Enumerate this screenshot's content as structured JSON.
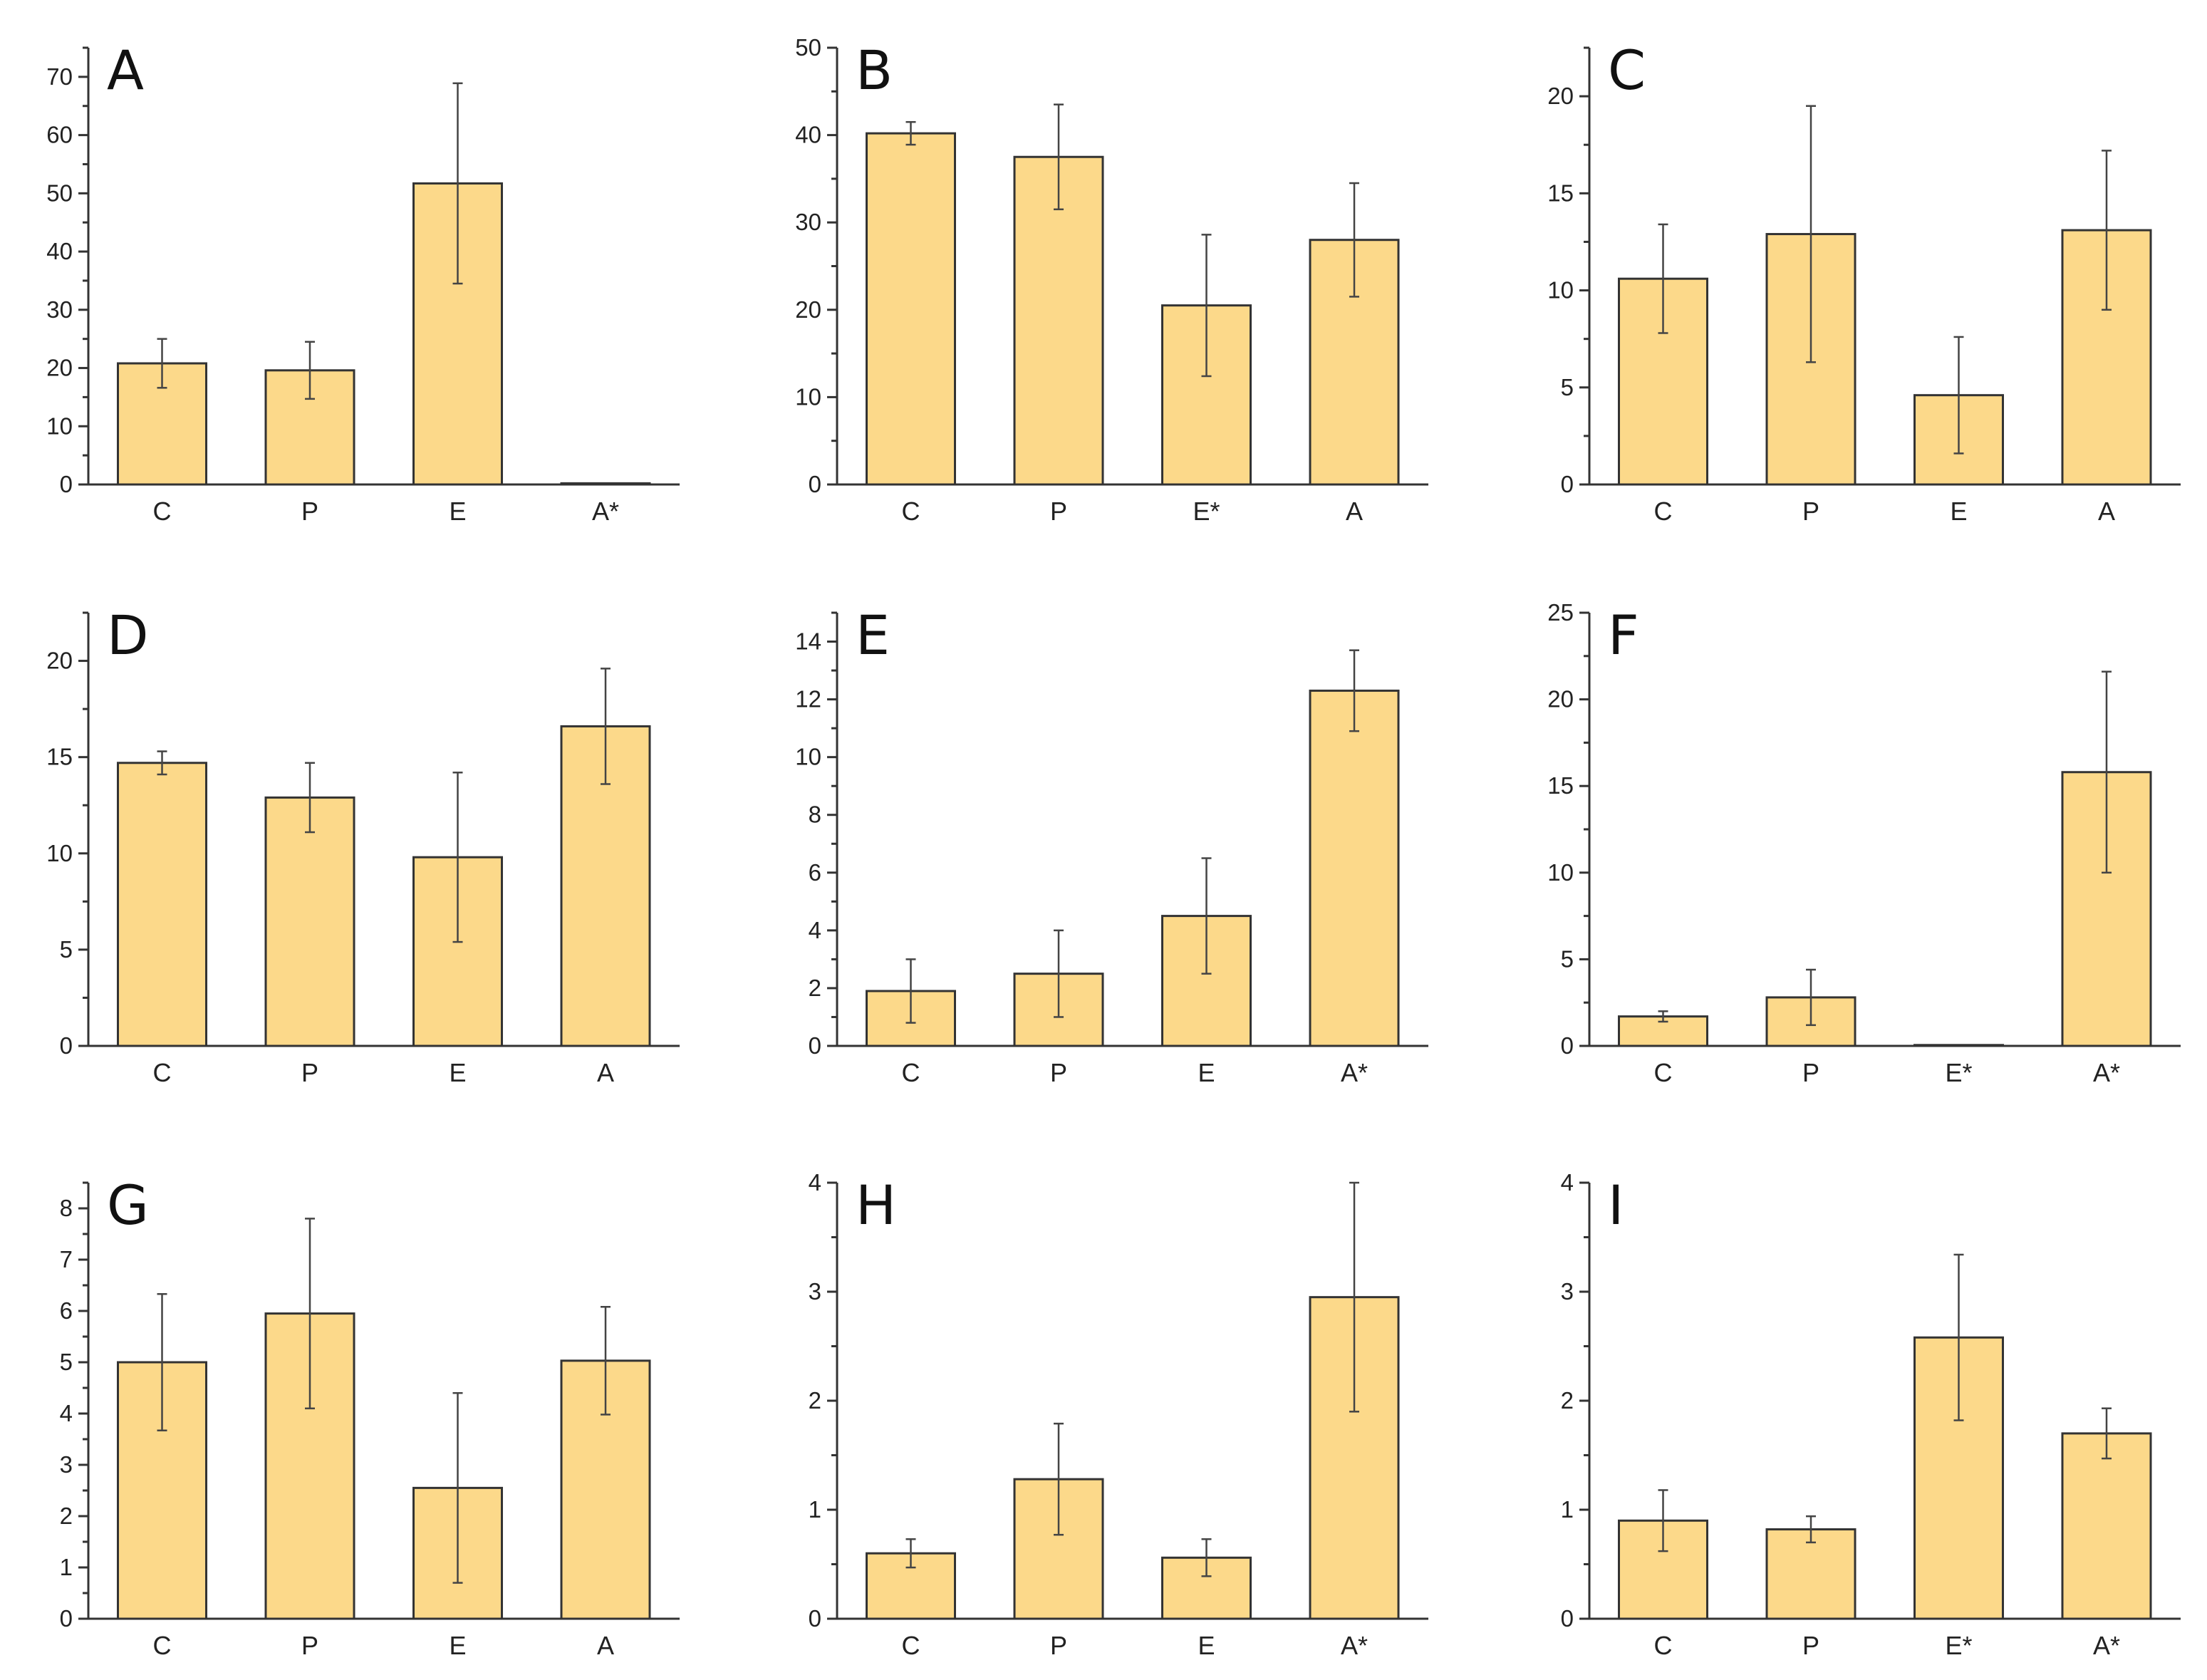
{
  "colors": {
    "bar_fill": "#fcd98a",
    "bar_stroke": "#333333",
    "axis": "#333333"
  },
  "chart_data": [
    {
      "type": "bar",
      "title": "A",
      "categories": [
        "C",
        "P",
        "E",
        "A*"
      ],
      "values": [
        20.8,
        19.6,
        51.7,
        0.2
      ],
      "errors": [
        4.2,
        4.9,
        17.2,
        0
      ],
      "ylim": [
        0,
        75
      ],
      "yticks": [
        "0",
        "10",
        "20",
        "30",
        "40",
        "50",
        "60",
        "70"
      ],
      "xlabel": "",
      "ylabel": ""
    },
    {
      "type": "bar",
      "title": "B",
      "categories": [
        "C",
        "P",
        "E*",
        "A"
      ],
      "values": [
        40.2,
        37.5,
        20.5,
        28.0
      ],
      "errors": [
        1.3,
        6.0,
        8.1,
        6.5
      ],
      "ylim": [
        0,
        50
      ],
      "yticks": [
        "0",
        "10",
        "20",
        "30",
        "40",
        "50"
      ],
      "xlabel": "",
      "ylabel": ""
    },
    {
      "type": "bar",
      "title": "C",
      "categories": [
        "C",
        "P",
        "E",
        "A"
      ],
      "values": [
        10.6,
        12.9,
        4.6,
        13.1
      ],
      "errors": [
        2.8,
        6.6,
        3.0,
        4.1
      ],
      "ylim": [
        0,
        22.5
      ],
      "yticks": [
        "0",
        "5",
        "10",
        "15",
        "20"
      ],
      "xlabel": "",
      "ylabel": ""
    },
    {
      "type": "bar",
      "title": "D",
      "categories": [
        "C",
        "P",
        "E",
        "A"
      ],
      "values": [
        14.7,
        12.9,
        9.8,
        16.6
      ],
      "errors": [
        0.6,
        1.8,
        4.4,
        3.0
      ],
      "ylim": [
        0,
        22.5
      ],
      "yticks": [
        "0",
        "5",
        "10",
        "15",
        "20"
      ],
      "xlabel": "",
      "ylabel": ""
    },
    {
      "type": "bar",
      "title": "E",
      "categories": [
        "C",
        "P",
        "E",
        "A*"
      ],
      "values": [
        1.9,
        2.5,
        4.5,
        12.3
      ],
      "errors": [
        1.1,
        1.5,
        2.0,
        1.4
      ],
      "ylim": [
        0,
        15
      ],
      "yticks": [
        "0",
        "2",
        "4",
        "6",
        "8",
        "10",
        "12",
        "14"
      ],
      "xlabel": "",
      "ylabel": ""
    },
    {
      "type": "bar",
      "title": "F",
      "categories": [
        "C",
        "P",
        "E*",
        "A*"
      ],
      "values": [
        1.7,
        2.8,
        0.05,
        15.8
      ],
      "errors": [
        0.3,
        1.6,
        0,
        5.8
      ],
      "ylim": [
        0,
        25
      ],
      "yticks": [
        "0",
        "5",
        "10",
        "15",
        "20",
        "25"
      ],
      "xlabel": "",
      "ylabel": ""
    },
    {
      "type": "bar",
      "title": "G",
      "categories": [
        "C",
        "P",
        "E",
        "A"
      ],
      "values": [
        5.0,
        5.95,
        2.55,
        5.03
      ],
      "errors": [
        1.33,
        1.85,
        1.85,
        1.05
      ],
      "ylim": [
        0,
        8.5
      ],
      "yticks": [
        "0",
        "1",
        "2",
        "3",
        "4",
        "5",
        "6",
        "7",
        "8"
      ],
      "xlabel": "",
      "ylabel": ""
    },
    {
      "type": "bar",
      "title": "H",
      "categories": [
        "C",
        "P",
        "E",
        "A*"
      ],
      "values": [
        0.6,
        1.28,
        0.56,
        2.95
      ],
      "errors": [
        0.13,
        0.51,
        0.17,
        1.05
      ],
      "ylim": [
        0,
        4
      ],
      "yticks": [
        "0",
        "1",
        "2",
        "3",
        "4"
      ],
      "xlabel": "",
      "ylabel": ""
    },
    {
      "type": "bar",
      "title": "I",
      "categories": [
        "C",
        "P",
        "E*",
        "A*"
      ],
      "values": [
        0.9,
        0.82,
        2.58,
        1.7
      ],
      "errors": [
        0.28,
        0.12,
        0.76,
        0.23
      ],
      "ylim": [
        0,
        4
      ],
      "yticks": [
        "0",
        "1",
        "2",
        "3",
        "4"
      ],
      "xlabel": "",
      "ylabel": ""
    }
  ]
}
